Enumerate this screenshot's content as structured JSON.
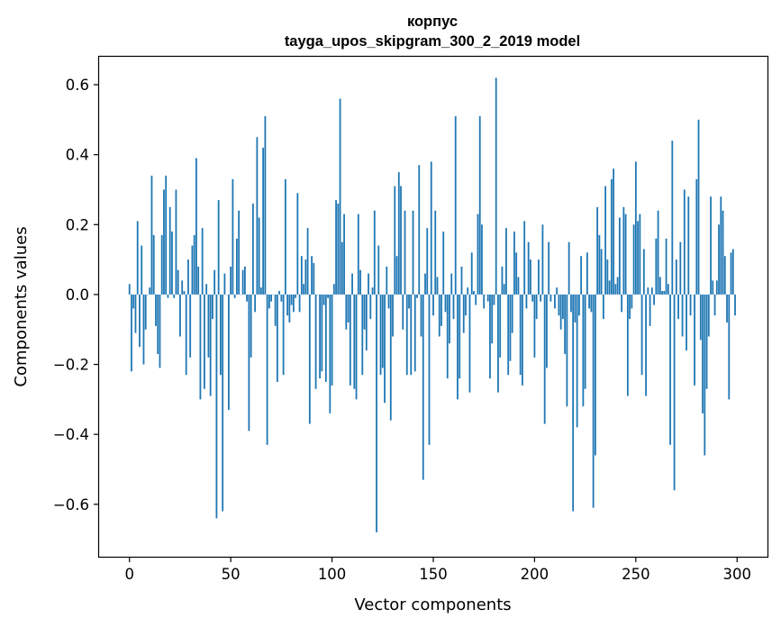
{
  "chart_data": {
    "type": "bar",
    "title": "корпус",
    "subtitle": "tayga_upos_skipgram_300_2_2019 model",
    "xlabel": "Vector components",
    "ylabel": "Components values",
    "xlim": [
      -15,
      315
    ],
    "ylim": [
      -0.75,
      0.68
    ],
    "xticks": [
      0,
      50,
      100,
      150,
      200,
      250,
      300
    ],
    "yticks": [
      -0.6,
      -0.4,
      -0.2,
      0.0,
      0.2,
      0.4,
      0.6
    ],
    "ytick_labels": [
      "−0.6",
      "−0.4",
      "−0.2",
      "0.0",
      "0.2",
      "0.4",
      "0.6"
    ],
    "bar_color": "#1f77b4",
    "x_start": 0,
    "values": [
      0.03,
      -0.22,
      -0.04,
      -0.11,
      0.21,
      -0.15,
      0.14,
      -0.2,
      -0.1,
      0.0,
      0.02,
      0.34,
      0.17,
      -0.09,
      -0.17,
      -0.21,
      0.17,
      0.3,
      0.34,
      -0.01,
      0.25,
      0.18,
      -0.01,
      0.3,
      0.07,
      -0.12,
      0.04,
      0.01,
      -0.23,
      0.1,
      -0.18,
      0.14,
      0.17,
      0.39,
      0.08,
      -0.3,
      0.19,
      -0.27,
      0.03,
      -0.18,
      -0.29,
      -0.07,
      0.07,
      -0.64,
      0.27,
      -0.23,
      -0.62,
      0.06,
      0.0,
      -0.33,
      0.08,
      0.33,
      -0.01,
      0.16,
      0.24,
      0.0,
      0.07,
      0.08,
      -0.02,
      -0.39,
      -0.18,
      0.26,
      -0.05,
      0.45,
      0.22,
      0.02,
      0.42,
      0.51,
      -0.43,
      -0.04,
      -0.02,
      0.0,
      -0.09,
      -0.25,
      0.01,
      -0.02,
      -0.23,
      0.33,
      -0.06,
      -0.08,
      -0.03,
      -0.05,
      -0.01,
      0.29,
      -0.05,
      0.11,
      0.03,
      0.1,
      0.19,
      -0.37,
      0.11,
      0.09,
      -0.27,
      0.0,
      -0.24,
      -0.22,
      -0.03,
      -0.25,
      -0.01,
      -0.34,
      -0.26,
      0.03,
      0.27,
      0.26,
      0.56,
      0.15,
      0.23,
      -0.1,
      -0.08,
      -0.26,
      0.06,
      -0.27,
      -0.3,
      0.23,
      0.07,
      -0.23,
      -0.1,
      -0.16,
      0.06,
      -0.07,
      0.02,
      0.24,
      -0.68,
      0.14,
      -0.23,
      -0.21,
      -0.31,
      0.08,
      -0.04,
      -0.36,
      -0.12,
      0.31,
      0.11,
      0.35,
      0.31,
      -0.1,
      0.24,
      -0.23,
      -0.04,
      -0.23,
      0.24,
      -0.22,
      -0.01,
      0.37,
      -0.12,
      -0.53,
      0.06,
      0.19,
      -0.43,
      0.38,
      -0.06,
      0.24,
      0.05,
      -0.12,
      -0.09,
      0.18,
      -0.05,
      -0.24,
      -0.14,
      0.06,
      -0.07,
      0.51,
      -0.3,
      -0.24,
      0.08,
      -0.11,
      -0.06,
      0.02,
      -0.28,
      0.12,
      0.01,
      -0.03,
      0.23,
      0.51,
      0.2,
      -0.04,
      0.0,
      -0.02,
      -0.24,
      -0.14,
      -0.03,
      0.62,
      -0.28,
      -0.18,
      0.08,
      0.03,
      0.19,
      -0.23,
      -0.19,
      -0.11,
      0.18,
      0.12,
      0.05,
      -0.23,
      -0.26,
      0.21,
      -0.04,
      0.15,
      0.1,
      -0.02,
      -0.18,
      -0.07,
      0.1,
      -0.02,
      0.2,
      -0.37,
      -0.21,
      0.15,
      -0.02,
      0.0,
      -0.04,
      0.02,
      -0.06,
      -0.1,
      -0.07,
      -0.17,
      -0.32,
      0.15,
      -0.05,
      -0.62,
      -0.08,
      -0.38,
      -0.06,
      0.11,
      -0.32,
      -0.27,
      0.12,
      -0.04,
      -0.05,
      -0.61,
      -0.46,
      0.25,
      0.17,
      0.13,
      -0.07,
      0.31,
      0.1,
      0.04,
      0.33,
      0.36,
      0.03,
      0.05,
      0.22,
      -0.05,
      0.25,
      0.23,
      -0.29,
      -0.07,
      -0.04,
      0.2,
      0.38,
      0.21,
      0.23,
      -0.23,
      0.13,
      -0.29,
      0.02,
      -0.09,
      0.02,
      -0.03,
      0.16,
      0.24,
      0.05,
      0.01,
      0.01,
      0.16,
      0.03,
      -0.43,
      0.44,
      -0.56,
      0.1,
      -0.07,
      0.15,
      -0.12,
      0.3,
      -0.16,
      0.28,
      -0.06,
      0.0,
      -0.26,
      0.33,
      0.5,
      -0.13,
      -0.34,
      -0.46,
      -0.27,
      -0.12,
      0.28,
      0.04,
      -0.06,
      0.04,
      0.2,
      0.28,
      0.24,
      0.11,
      -0.08,
      -0.3,
      0.12,
      0.13,
      -0.06
    ]
  }
}
